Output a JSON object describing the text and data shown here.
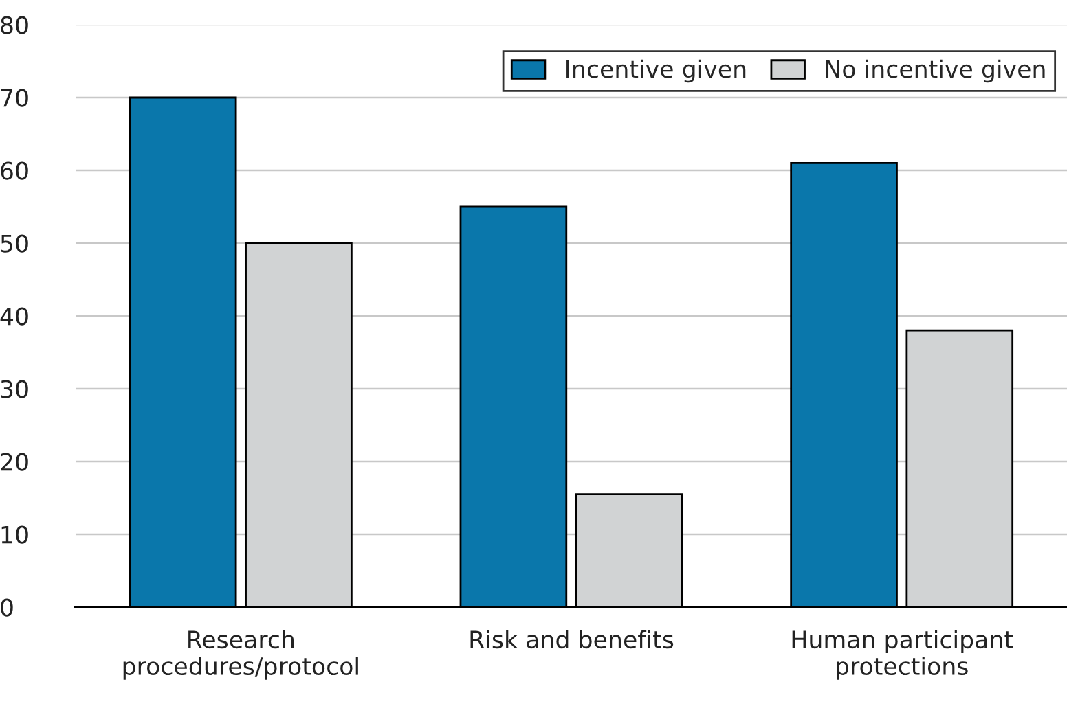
{
  "chart_data": {
    "type": "bar",
    "categories": [
      "Research\nprocedures/protocol",
      "Risk and benefits",
      "Human participant\nprotections"
    ],
    "series": [
      {
        "name": "Incentive given",
        "color": "#0a77ab",
        "values": [
          70,
          55,
          61
        ]
      },
      {
        "name": "No incentive given",
        "color": "#d1d3d4",
        "values": [
          50,
          15.5,
          38
        ]
      }
    ],
    "ylim": [
      0,
      80
    ],
    "yticks": [
      0,
      10,
      20,
      30,
      40,
      50,
      60,
      70,
      80
    ],
    "grid": "y",
    "legend": "top right"
  }
}
